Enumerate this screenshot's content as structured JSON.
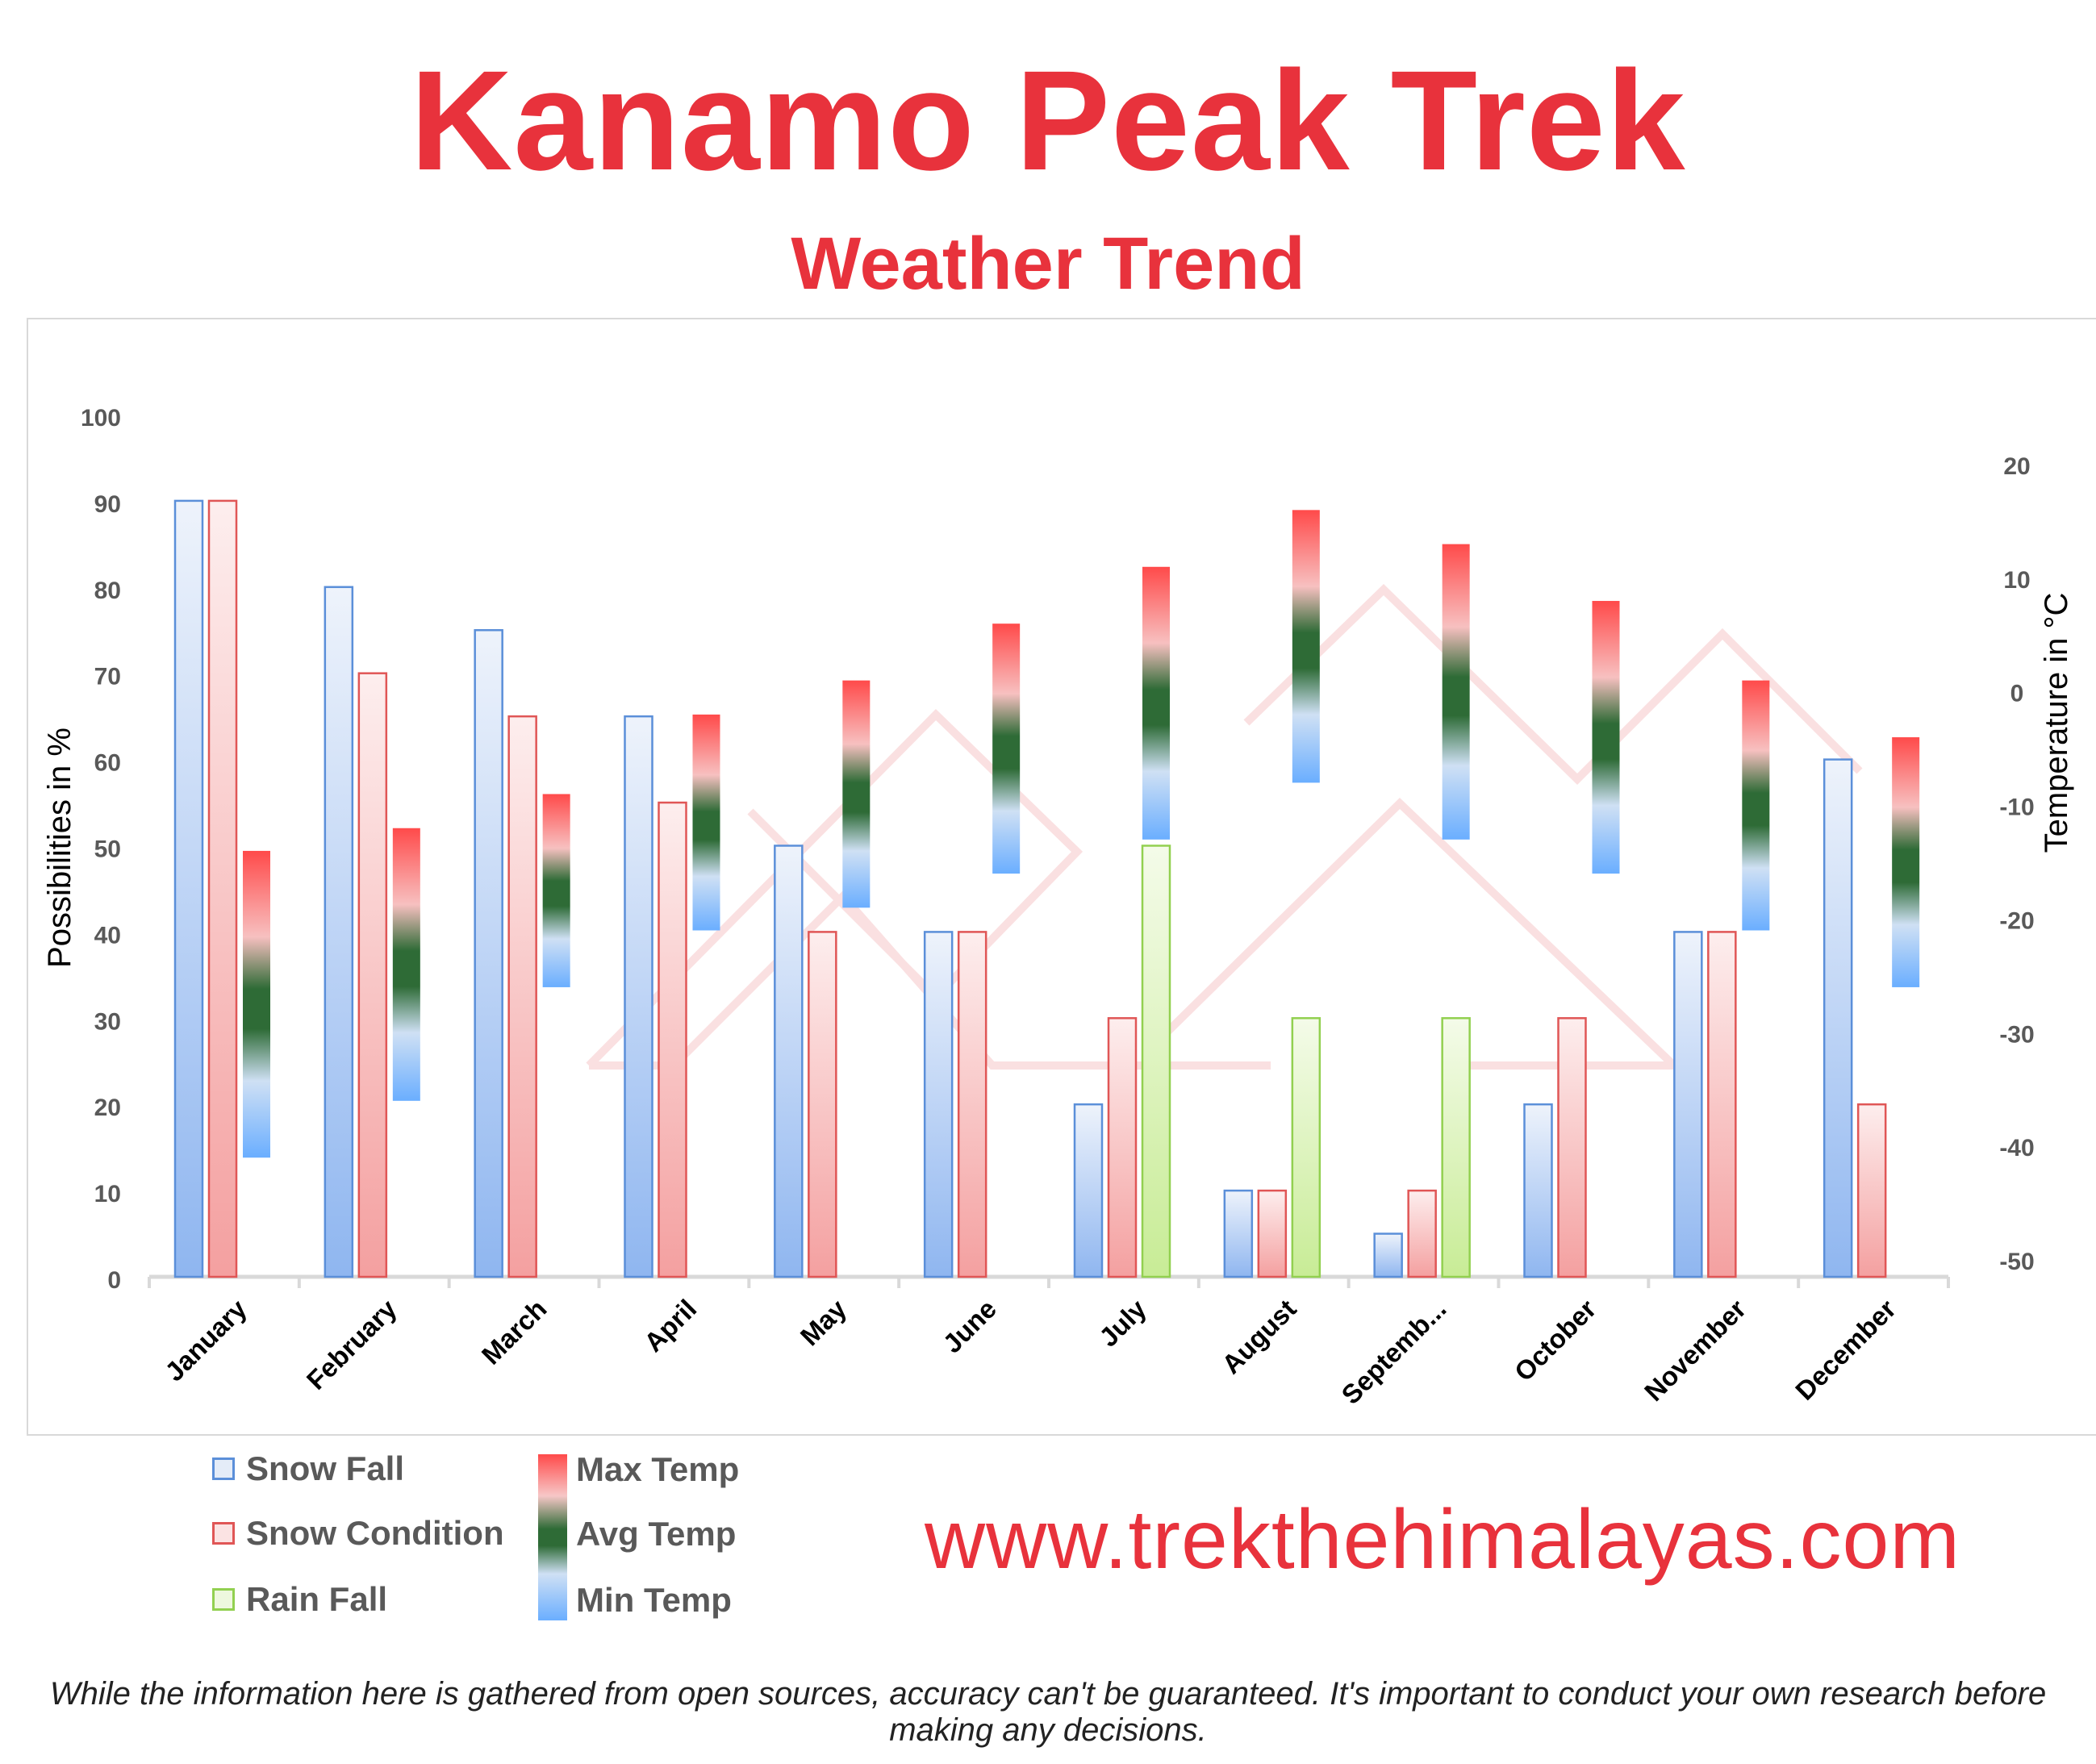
{
  "title": "Kanamo Peak Trek",
  "subtitle": "Weather Trend",
  "website": "www.trekthehimalayas.com",
  "disclaimer": "While the information here is gathered from open sources, accuracy can't be guaranteed. It's important to conduct your own research before making any decisions.",
  "legend": {
    "snow_fall": "Snow Fall",
    "snow_condition": "Snow Condition",
    "rain_fall": "Rain Fall",
    "max_temp": "Max Temp",
    "avg_temp": "Avg Temp",
    "min_temp": "Min Temp"
  },
  "colors": {
    "title": "#e8323c",
    "snow_fall": "#5b8fd9",
    "snow_condition": "#e05656",
    "rain_fall": "#92d050",
    "max_temp": "#ff4a4a",
    "avg_temp": "#2e6b36",
    "min_temp": "#6aaeff"
  },
  "chart_data": {
    "type": "bar",
    "categories": [
      "January",
      "February",
      "March",
      "April",
      "May",
      "June",
      "July",
      "August",
      "Septemb...",
      "October",
      "November",
      "December"
    ],
    "ylabel": "Possibilities in %",
    "y2label": "Temperature in °C",
    "ylim": [
      0,
      100
    ],
    "y2lim": [
      -50,
      20
    ],
    "yticks": [
      "0",
      "10",
      "20",
      "30",
      "40",
      "50",
      "60",
      "70",
      "80",
      "90",
      "100"
    ],
    "y2ticks": [
      "-50",
      "-40",
      "-30",
      "-20",
      "-10",
      "0",
      "10",
      "20"
    ],
    "series": [
      {
        "name": "Snow Fall",
        "values": [
          90,
          80,
          75,
          65,
          50,
          40,
          20,
          10,
          5,
          20,
          40,
          60
        ]
      },
      {
        "name": "Snow Condition",
        "values": [
          90,
          70,
          65,
          55,
          40,
          40,
          30,
          10,
          10,
          30,
          40,
          20
        ]
      },
      {
        "name": "Rain Fall",
        "values": [
          0,
          0,
          0,
          0,
          0,
          0,
          50,
          30,
          30,
          0,
          0,
          0
        ]
      }
    ],
    "temperature": {
      "max": [
        -14,
        -12,
        -9,
        -2,
        1,
        6,
        11,
        16,
        13,
        8,
        1,
        -4
      ],
      "min": [
        -41,
        -36,
        -26,
        -21,
        -19,
        -16,
        -13,
        -8,
        -13,
        -16,
        -21,
        -26
      ]
    },
    "grid": false,
    "legend_position": "bottom-left"
  }
}
